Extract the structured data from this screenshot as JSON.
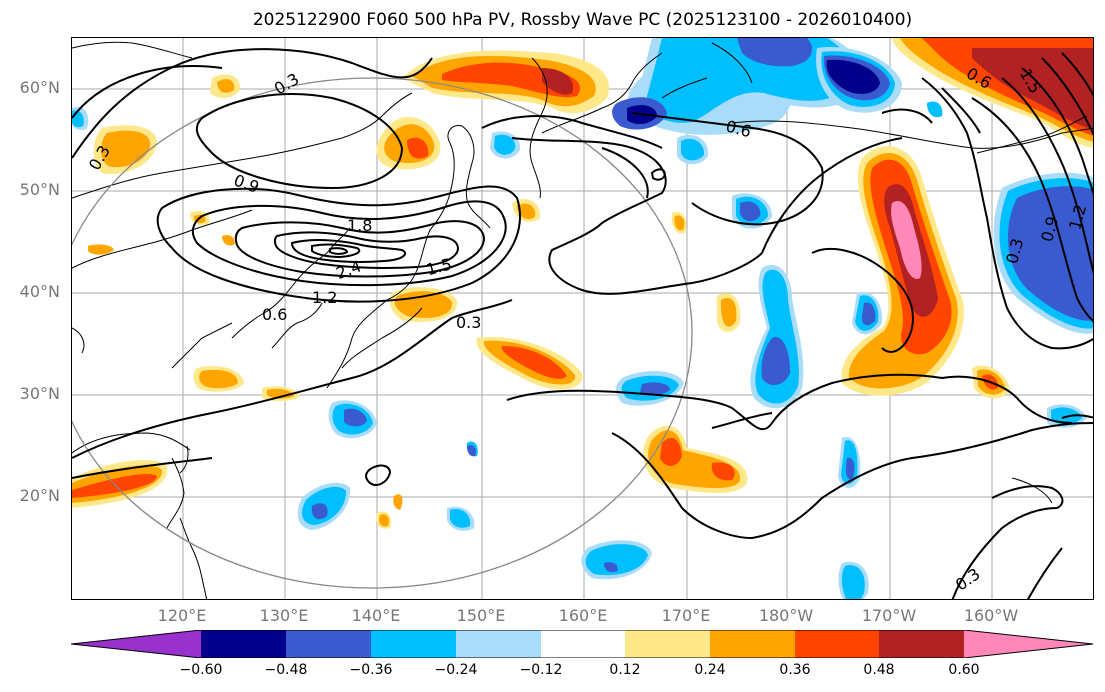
{
  "title": "2025122900 F060 500 hPa PV, Rossby Wave PC (2025123100 - 2026010400)",
  "latitude_labels": [
    "60°N",
    "50°N",
    "40°N",
    "30°N",
    "20°N"
  ],
  "longitude_labels": [
    "120°E",
    "130°E",
    "140°E",
    "150°E",
    "160°E",
    "170°E",
    "180°W",
    "170°W",
    "160°W"
  ],
  "contour_labels": [
    "0.3",
    "0.3",
    "0.9",
    "1.8",
    "2.4",
    "1.5",
    "1.2",
    "0.6",
    "0.3",
    "0.6",
    "0.6",
    "1.5",
    "0.3",
    "0.9",
    "1.2",
    "0.3"
  ],
  "colorbar": {
    "ticks": [
      "−0.60",
      "−0.48",
      "−0.36",
      "−0.24",
      "−0.12",
      "0.12",
      "0.24",
      "0.36",
      "0.48",
      "0.60"
    ],
    "colors": [
      "#9932cc",
      "#00008b",
      "#3a5bd0",
      "#00bfff",
      "#a8dcf8",
      "#ffffff",
      "#ffe88a",
      "#ffa500",
      "#ff4500",
      "#b22222",
      "#ff88b8"
    ]
  }
}
